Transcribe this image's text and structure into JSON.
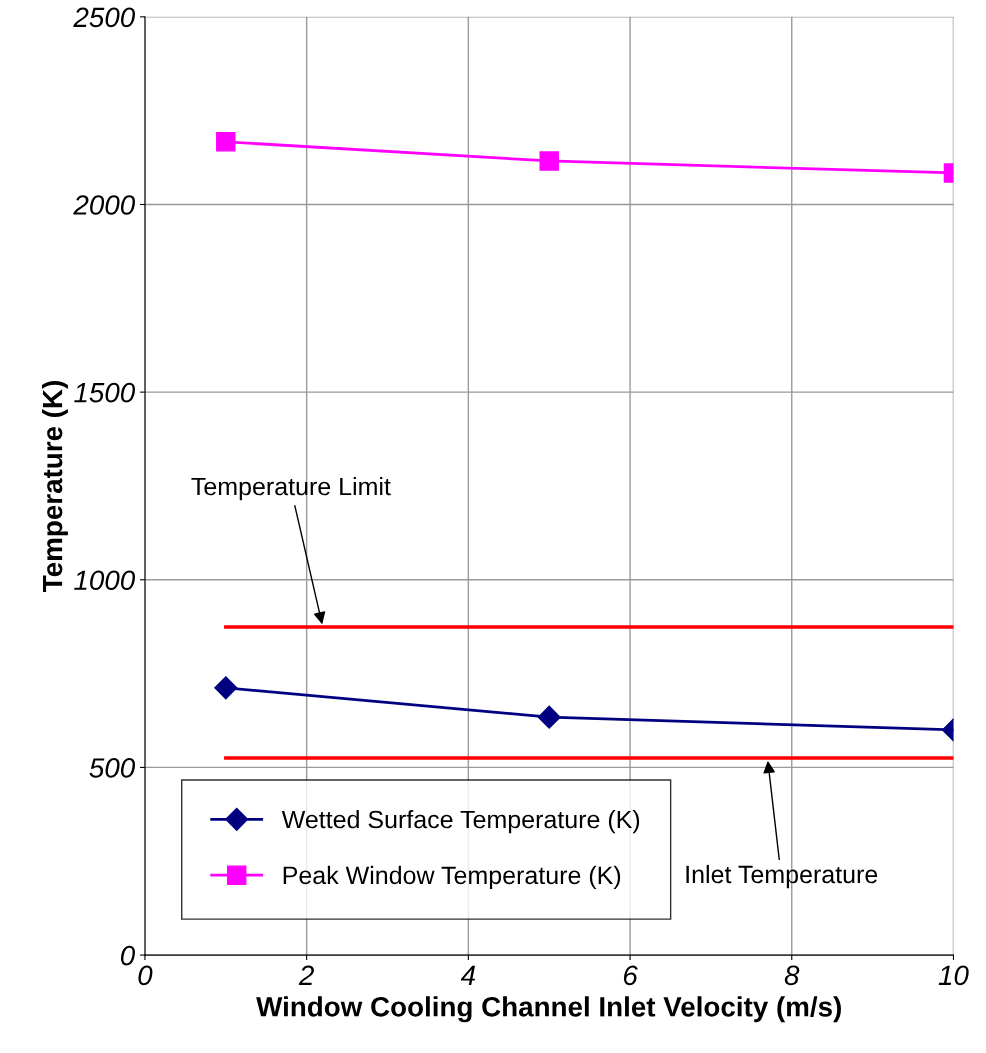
{
  "chart_data": {
    "type": "line",
    "xlabel": "Window Cooling Channel Inlet Velocity (m/s)",
    "ylabel": "Temperature (K)",
    "x": [
      1,
      5,
      10
    ],
    "series": [
      {
        "name": "Wetted Surface Temperature (K)",
        "color": "#000080",
        "values": [
          712,
          634,
          600
        ],
        "marker": "diamond"
      },
      {
        "name": "Peak Window Temperature (K)",
        "color": "#ff00ff",
        "values": [
          2167,
          2116,
          2084
        ],
        "marker": "square"
      },
      {
        "color": "#ff0000",
        "values": [
          874,
          874,
          874
        ],
        "marker": "none"
      },
      {
        "color": "#ff0000",
        "values": [
          525,
          525,
          525
        ],
        "marker": "none"
      }
    ],
    "annotations": [
      {
        "text": "Temperature Limit",
        "x": 2.2,
        "y": 874
      },
      {
        "text": "Inlet Temperature",
        "x": 7.7,
        "y": 525
      }
    ],
    "xlim": [
      0,
      10
    ],
    "xticks": [
      0,
      2,
      4,
      6,
      8,
      10
    ],
    "ylim": [
      0,
      2500
    ],
    "yticks": [
      0,
      500,
      1000,
      1500,
      2000,
      2500
    ],
    "grid": true,
    "legend": "bottom left"
  }
}
